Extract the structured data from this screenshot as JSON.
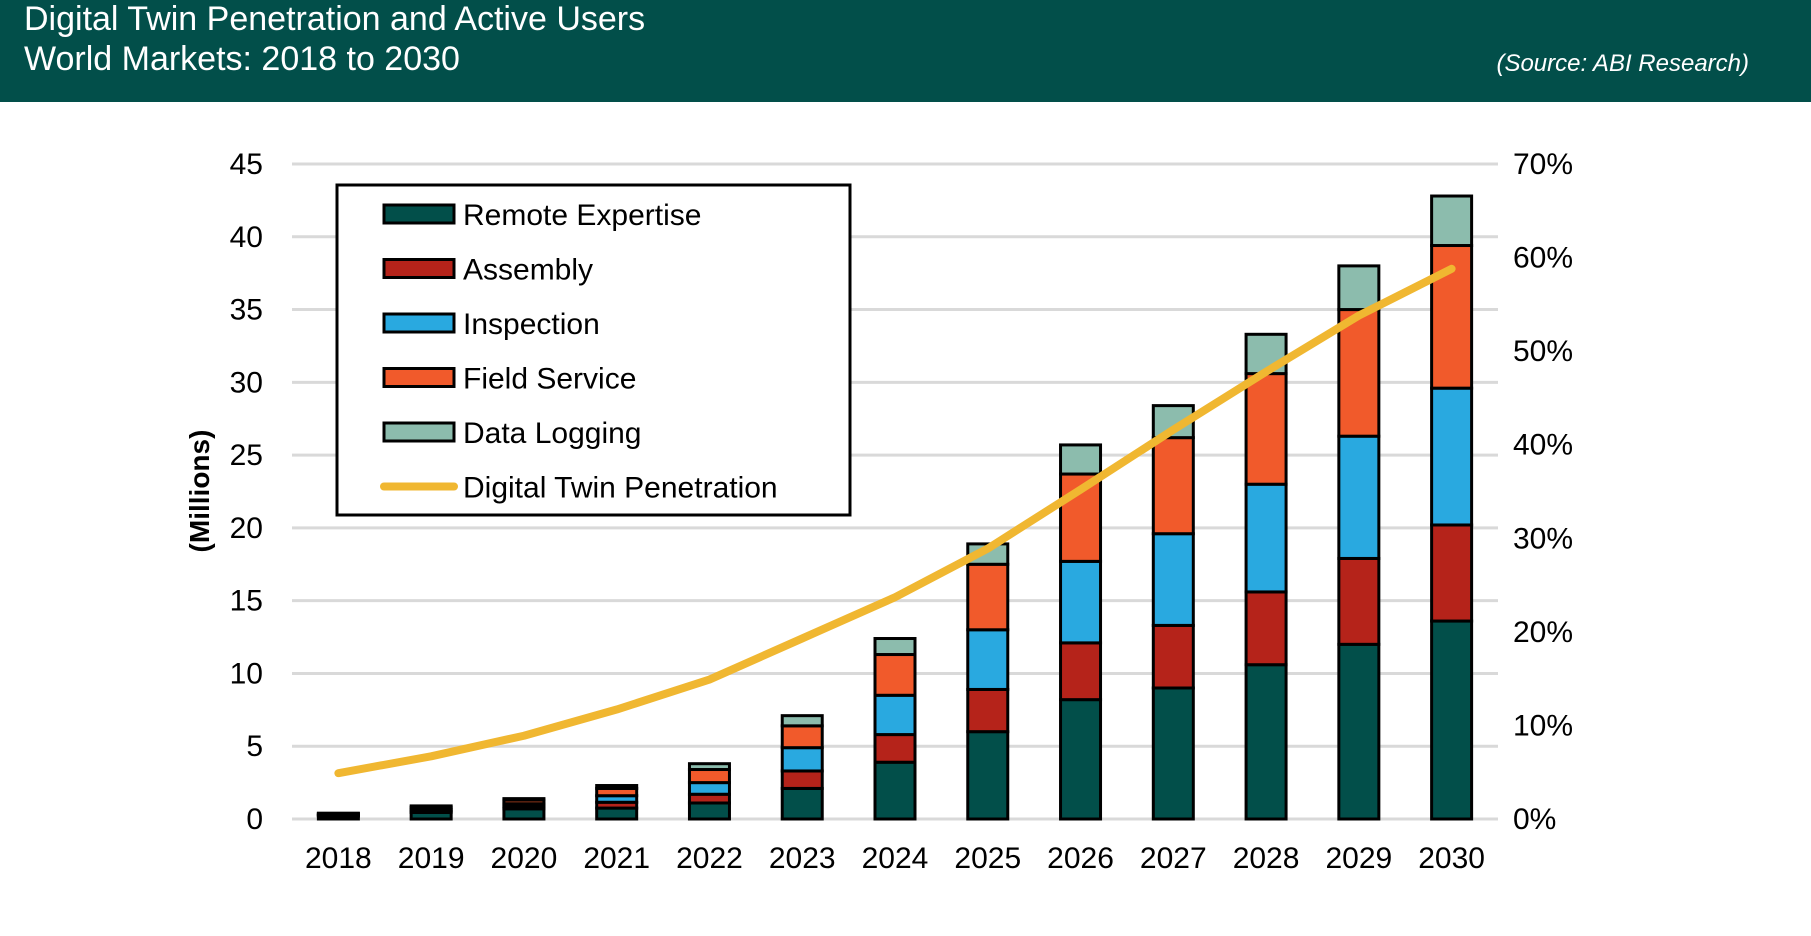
{
  "header": {
    "title": "Digital Twin Penetration and Active Users",
    "subtitle": "World Markets: 2018 to 2030",
    "source": "(Source: ABI Research)",
    "background": "#024f4a"
  },
  "chart_data": {
    "type": "bar",
    "stacked": true,
    "categories": [
      "2018",
      "2019",
      "2020",
      "2021",
      "2022",
      "2023",
      "2024",
      "2025",
      "2026",
      "2027",
      "2028",
      "2029",
      "2030"
    ],
    "ylabel": "(Millions)",
    "ylim": [
      0,
      45
    ],
    "yticks": [
      0,
      5,
      10,
      15,
      20,
      25,
      30,
      35,
      40,
      45
    ],
    "y2lim": [
      0,
      70
    ],
    "y2ticks": [
      "0%",
      "10%",
      "20%",
      "30%",
      "40%",
      "50%",
      "60%",
      "70%"
    ],
    "grid": true,
    "legend": "top-left",
    "series": [
      {
        "name": "Remote Expertise",
        "color": "#024f4a",
        "values": [
          0.2,
          0.45,
          0.7,
          0.75,
          1.1,
          2.1,
          3.9,
          6.0,
          8.2,
          9.0,
          10.6,
          12.0,
          13.6
        ]
      },
      {
        "name": "Assembly",
        "color": "#b5231a",
        "values": [
          0.05,
          0.1,
          0.15,
          0.4,
          0.6,
          1.2,
          1.9,
          2.9,
          3.9,
          4.3,
          5.0,
          5.9,
          6.6
        ]
      },
      {
        "name": "Inspection",
        "color": "#29a9e0",
        "values": [
          0.05,
          0.1,
          0.2,
          0.45,
          0.8,
          1.6,
          2.7,
          4.1,
          5.6,
          6.3,
          7.4,
          8.4,
          9.4
        ]
      },
      {
        "name": "Field Service",
        "color": "#f15a2b",
        "values": [
          0.07,
          0.15,
          0.25,
          0.5,
          0.9,
          1.5,
          2.8,
          4.5,
          6.0,
          6.6,
          7.6,
          8.7,
          9.8
        ]
      },
      {
        "name": "Data Logging",
        "color": "#8cbcad",
        "values": [
          0.03,
          0.1,
          0.1,
          0.2,
          0.4,
          0.7,
          1.1,
          1.4,
          2.0,
          2.2,
          2.7,
          3.0,
          3.4
        ]
      }
    ],
    "line": {
      "name": "Digital Twin Penetration",
      "color": "#f0b731",
      "axis": "right",
      "unit": "%",
      "values": [
        4.9,
        6.7,
        8.9,
        11.7,
        14.9,
        19.3,
        23.7,
        28.9,
        35.2,
        41.6,
        47.8,
        53.8,
        58.8
      ]
    }
  }
}
